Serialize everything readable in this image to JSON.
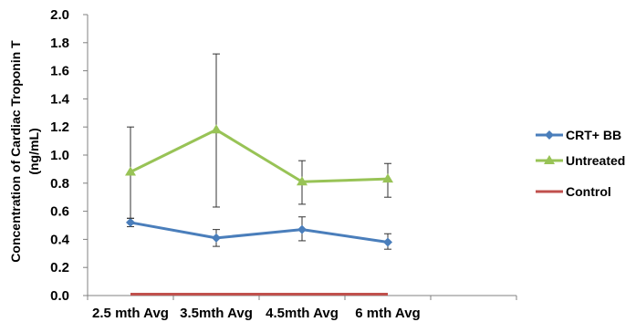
{
  "chart_data": {
    "type": "line",
    "categories": [
      "2.5 mth Avg",
      "3.5mth Avg",
      "4.5mth Avg",
      "6 mth Avg"
    ],
    "ylabel_line1": "Concentration of Cardiac Troponin T",
    "ylabel_line2": "(ng/mL)",
    "ylim": [
      0,
      2.0
    ],
    "yticks": [
      "0.0",
      "0.2",
      "0.4",
      "0.6",
      "0.8",
      "1.0",
      "1.2",
      "1.4",
      "1.6",
      "1.8",
      "2.0"
    ],
    "grid": false,
    "legend_position": "right",
    "series": [
      {
        "name": "CRT+ BB",
        "color": "#4a7ebb",
        "marker": "diamond",
        "values": [
          0.52,
          0.41,
          0.47,
          0.38
        ],
        "err_low": [
          0.49,
          0.35,
          0.39,
          0.33
        ],
        "err_high": [
          0.55,
          0.47,
          0.56,
          0.44
        ]
      },
      {
        "name": "Untreated",
        "color": "#98c356",
        "marker": "triangle",
        "values": [
          0.88,
          1.18,
          0.81,
          0.83
        ],
        "err_low": [
          0.55,
          0.63,
          0.65,
          0.7
        ],
        "err_high": [
          1.2,
          1.72,
          0.96,
          0.94
        ]
      },
      {
        "name": "Control",
        "color": "#c0504d",
        "marker": "none",
        "values": [
          0.01,
          0.01,
          0.01,
          0.01
        ]
      }
    ]
  }
}
